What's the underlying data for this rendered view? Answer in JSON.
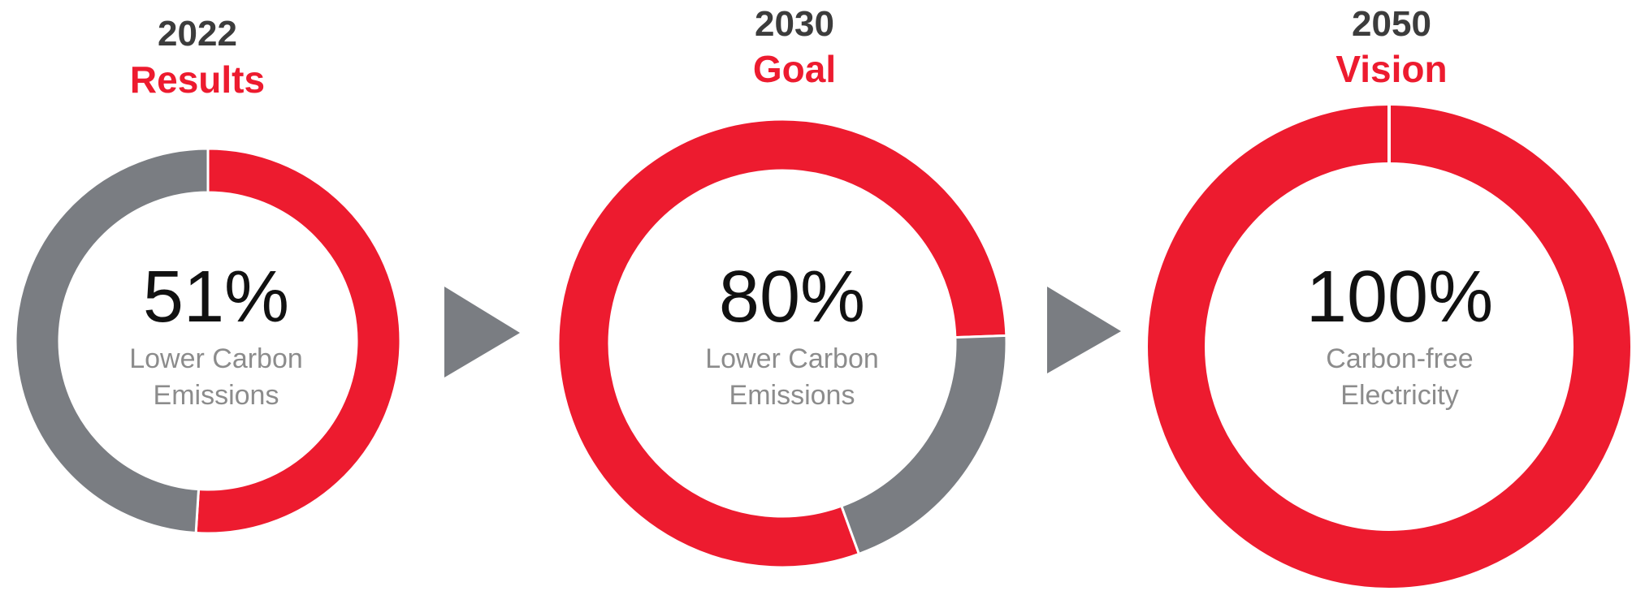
{
  "colors": {
    "accent": "#ED1B2F",
    "remainder": "#7A7D82",
    "heading": "#3C3C3C",
    "caption": "#8C8C8C",
    "value": "#111111",
    "arrow": "#7A7D82"
  },
  "chart_data": [
    {
      "type": "pie",
      "title": "2022",
      "subtitle": "Results",
      "center_value": "51%",
      "center_caption": [
        "Lower Carbon",
        "Emissions"
      ],
      "value_percent": 51
    },
    {
      "type": "pie",
      "title": "2030",
      "subtitle": "Goal",
      "center_value": "80%",
      "center_caption": [
        "Lower Carbon",
        "Emissions"
      ],
      "value_percent": 80
    },
    {
      "type": "pie",
      "title": "2050",
      "subtitle": "Vision",
      "center_value": "100%",
      "center_caption": [
        "Carbon-free",
        "Electricity"
      ],
      "value_percent": 100
    }
  ],
  "arrows": [
    {
      "icon": "right-triangle-arrow-icon"
    },
    {
      "icon": "right-triangle-arrow-icon"
    }
  ]
}
